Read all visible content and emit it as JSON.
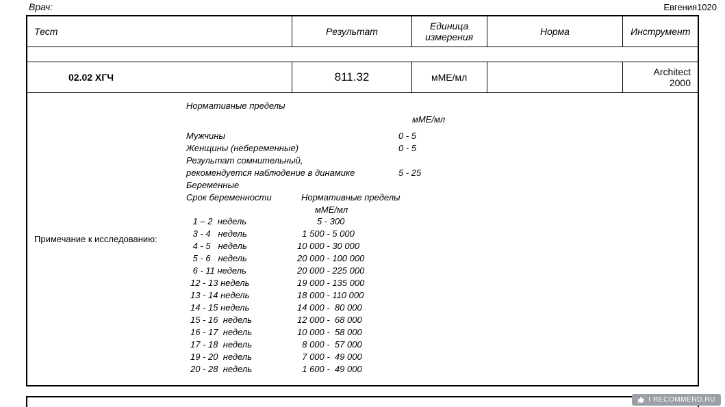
{
  "header": {
    "doctor_label": "Врач:",
    "watermark_name": "Евгения1020"
  },
  "columns": {
    "test": "Тест",
    "result": "Результат",
    "unit": "Единица измерения",
    "norm": "Норма",
    "instrument": "Инструмент"
  },
  "row": {
    "test_name": "02.02 ХГЧ",
    "result": "811.32",
    "unit": "мМЕ/мл",
    "norm": "",
    "instrument": "Architect 2000"
  },
  "notes": {
    "label": "Примечание к исследованию:",
    "title": "Нормативные пределы",
    "unit": "мМЕ/мл",
    "lines": [
      {
        "lbl": "Мужчины",
        "val": "0 - 5"
      },
      {
        "lbl": "Женщины (небеременные)",
        "val": "0 - 5"
      },
      {
        "lbl": "Результат сомнительный,",
        "val": ""
      },
      {
        "lbl": "рекомендуется наблюдение в динамике",
        "val": "5 - 25"
      },
      {
        "lbl": "Беременные",
        "val": ""
      }
    ],
    "preg_header": {
      "c1": "Срок беременности",
      "c2": "Нормативные пределы"
    },
    "preg_subunit": "мМЕ/мл",
    "pregnancy": [
      {
        "weeks": " 1 – 2  недель",
        "range": "        5 - 300"
      },
      {
        "weeks": " 3 - 4   недель",
        "range": "  1 500 - 5 000"
      },
      {
        "weeks": " 4 - 5   недель",
        "range": "10 000 - 30 000"
      },
      {
        "weeks": " 5 - 6   недель",
        "range": "20 000 - 100 000"
      },
      {
        "weeks": " 6 - 11 недель",
        "range": "20 000 - 225 000"
      },
      {
        "weeks": "12 - 13 недель",
        "range": "19 000 - 135 000"
      },
      {
        "weeks": "13 - 14 недель",
        "range": "18 000 - 110 000"
      },
      {
        "weeks": "14 - 15 недель",
        "range": "14 000 -  80 000"
      },
      {
        "weeks": "15 - 16  недель",
        "range": "12 000 -  68 000"
      },
      {
        "weeks": "16 - 17  недель",
        "range": "10 000 -  58 000"
      },
      {
        "weeks": "17 - 18  недель",
        "range": "  8 000 -  57 000"
      },
      {
        "weeks": "19 - 20  недель",
        "range": "  7 000 -  49 000"
      },
      {
        "weeks": "20 - 28  недель",
        "range": "  1 600 -  49 000"
      }
    ]
  },
  "badge": {
    "text": "I RECOMMEND.RU"
  },
  "style": {
    "text_color": "#000000",
    "border_color": "#000000",
    "background": "#ffffff",
    "badge_bg": "#9aa0a6",
    "badge_fg": "#ffffff",
    "base_font_size": 13,
    "result_font_size": 17
  }
}
